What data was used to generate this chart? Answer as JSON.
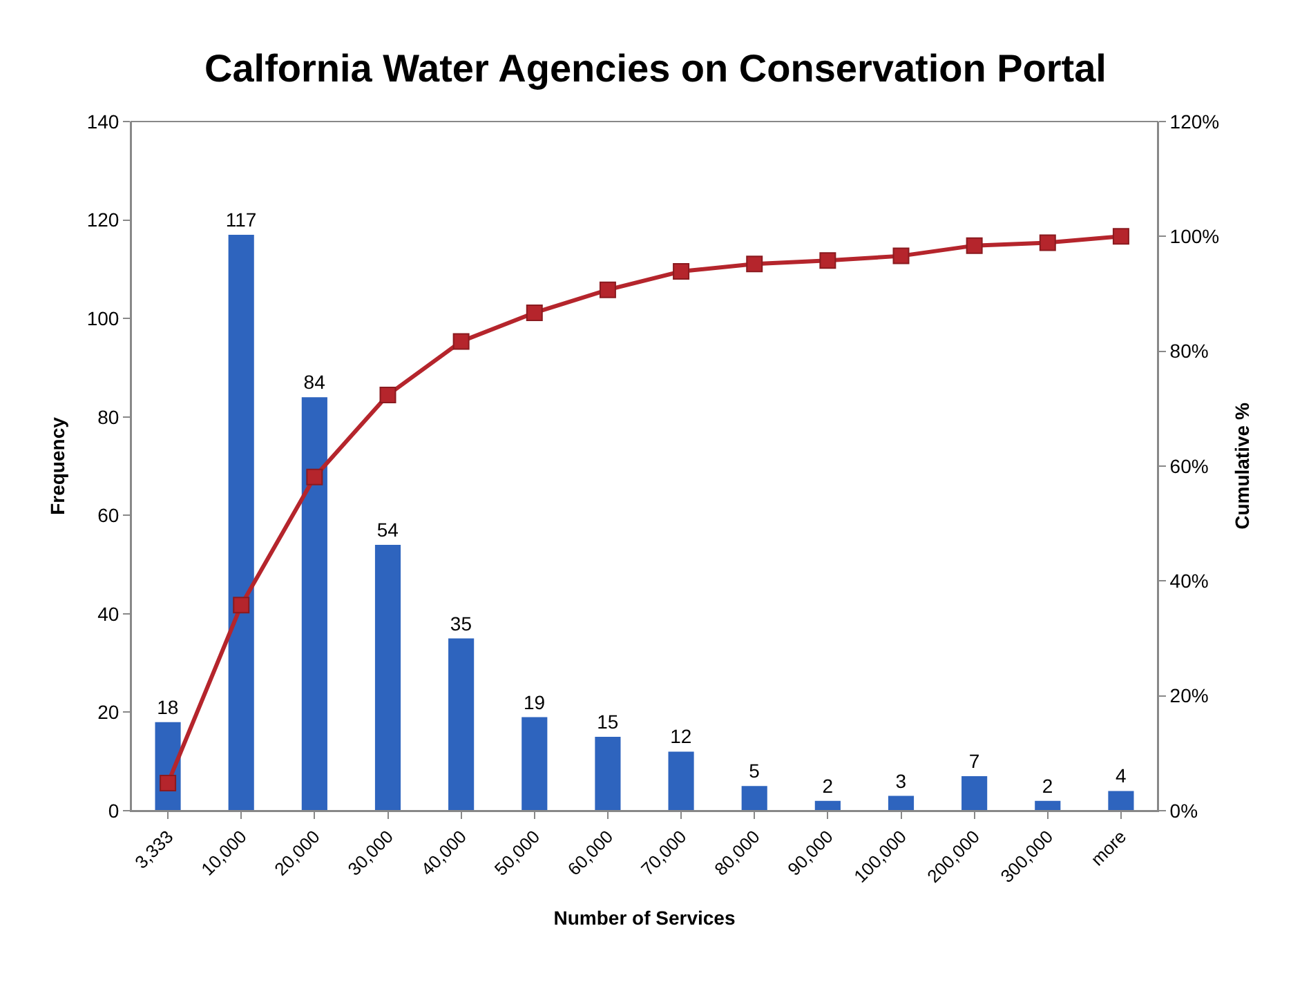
{
  "chart_data": {
    "type": "bar",
    "title": "Calfornia Water Agencies on Conservation Portal",
    "xlabel": "Number of Services",
    "ylabel": "Frequency",
    "y2label": "Cumulative %",
    "categories": [
      "3,333",
      "10,000",
      "20,000",
      "30,000",
      "40,000",
      "50,000",
      "60,000",
      "70,000",
      "80,000",
      "90,000",
      "100,000",
      "200,000",
      "300,000",
      "more"
    ],
    "series": [
      {
        "color": "#2e64be",
        "values": [
          18,
          117,
          84,
          54,
          35,
          19,
          15,
          12,
          5,
          2,
          3,
          7,
          2,
          4
        ],
        "value_labels": [
          "18",
          "117",
          "84",
          "54",
          "35",
          "19",
          "15",
          "12",
          "5",
          "2",
          "3",
          "7",
          "2",
          "4"
        ]
      },
      {
        "type": "line",
        "axis": "y2",
        "color": "#b5252c",
        "marker": "square",
        "values": [
          4.8,
          35.8,
          58.1,
          72.4,
          81.7,
          86.7,
          90.7,
          93.9,
          95.2,
          95.8,
          96.6,
          98.4,
          98.9,
          100
        ]
      }
    ],
    "ylim": [
      0,
      140
    ],
    "yticks": [
      0,
      20,
      40,
      60,
      80,
      100,
      120,
      140
    ],
    "y2lim": [
      0,
      120
    ],
    "y2ticks": [
      {
        "value": 0,
        "label": "0%"
      },
      {
        "value": 20,
        "label": "20%"
      },
      {
        "value": 40,
        "label": "40%"
      },
      {
        "value": 60,
        "label": "60%"
      },
      {
        "value": 80,
        "label": "80%"
      },
      {
        "value": 100,
        "label": "100%"
      },
      {
        "value": 120,
        "label": "120%"
      }
    ],
    "grid": false
  }
}
